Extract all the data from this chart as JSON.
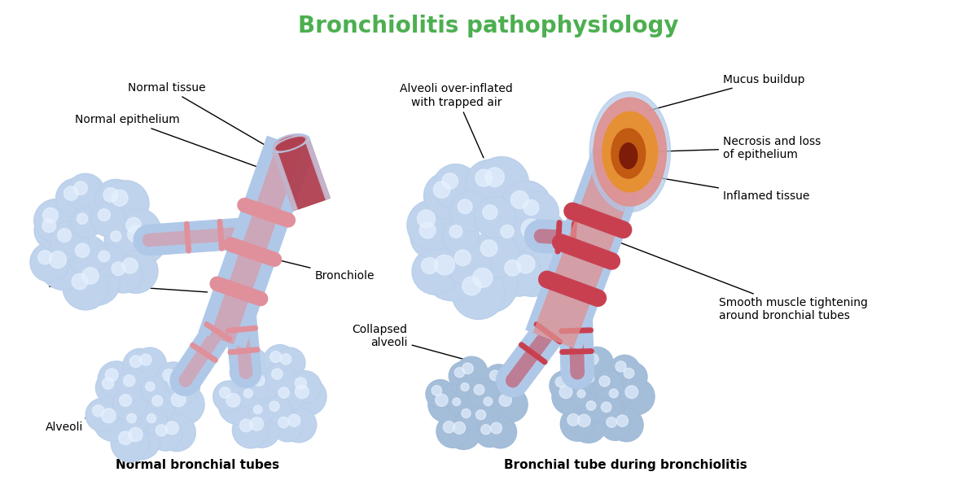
{
  "title": "Bronchiolitis pathophysiology",
  "title_color": "#4CAF50",
  "title_fontsize": 20,
  "title_fontweight": "bold",
  "background_color": "#ffffff",
  "label1_title": "Normal bronchial tubes",
  "label2_title": "Bronchial tube during bronchiolitis",
  "alveoli_color_light": "#c8daf0",
  "alveoli_color_mid": "#a8c0e0",
  "alveoli_color_dark": "#90afd8",
  "alveoli_highlight": "#e8f2ff",
  "tube_blue": "#b0c8e8",
  "tube_blue_dark": "#90aad0",
  "tube_pink": "#e0909a",
  "tube_red_inner": "#c85060",
  "tube_interior": "#b04050",
  "infl_pink": "#e09090",
  "infl_orange": "#e8902a",
  "infl_dark_orange": "#c05810",
  "infl_dark_red": "#8a2010",
  "collapsed_color": "#a8c0d8"
}
